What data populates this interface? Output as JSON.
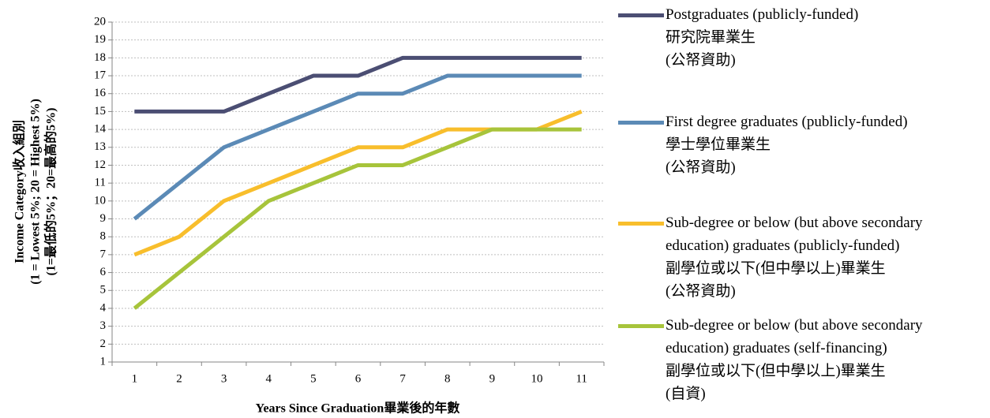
{
  "chart_data": {
    "type": "line",
    "x_label": "Years Since Graduation畢業後的年數",
    "y_label": [
      "Income Category收入組別",
      "(1 = Lowest 5%; 20 = Highest 5%)",
      "(1=最低的5%；20=最高的5%)"
    ],
    "categories": [
      "1",
      "2",
      "3",
      "4",
      "5",
      "6",
      "7",
      "8",
      "9",
      "10",
      "11"
    ],
    "ylim": [
      1,
      20
    ],
    "yticks": [
      1,
      2,
      3,
      4,
      5,
      6,
      7,
      8,
      9,
      10,
      11,
      12,
      13,
      14,
      15,
      16,
      17,
      18,
      19,
      20
    ],
    "grid": true,
    "legend": "right",
    "series": [
      {
        "name": "Postgraduates (publicly-funded)\n研究院畢業生\n(公帑資助)",
        "color": "#4b4e73",
        "values": [
          15,
          15,
          15,
          16,
          17,
          17,
          18,
          18,
          18,
          18,
          18
        ]
      },
      {
        "name": "First degree graduates (publicly-funded)\n學士學位畢業生\n(公帑資助)",
        "color": "#5b8ab6",
        "values": [
          9,
          11,
          13,
          14,
          15,
          16,
          16,
          17,
          17,
          17,
          17
        ]
      },
      {
        "name": "Sub-degree or below (but above secondary\neducation) graduates (publicly-funded)\n副學位或以下(但中學以上)畢業生\n(公帑資助)",
        "color": "#f8be2c",
        "values": [
          7,
          8,
          10,
          11,
          12,
          13,
          13,
          14,
          14,
          14,
          15
        ]
      },
      {
        "name": "Sub-degree or below (but above secondary\neducation) graduates (self-financing)\n副學位或以下(但中學以上)畢業生\n(自資)",
        "color": "#a7c43b",
        "values": [
          4,
          6,
          8,
          10,
          11,
          12,
          12,
          13,
          14,
          14,
          14
        ]
      }
    ]
  }
}
